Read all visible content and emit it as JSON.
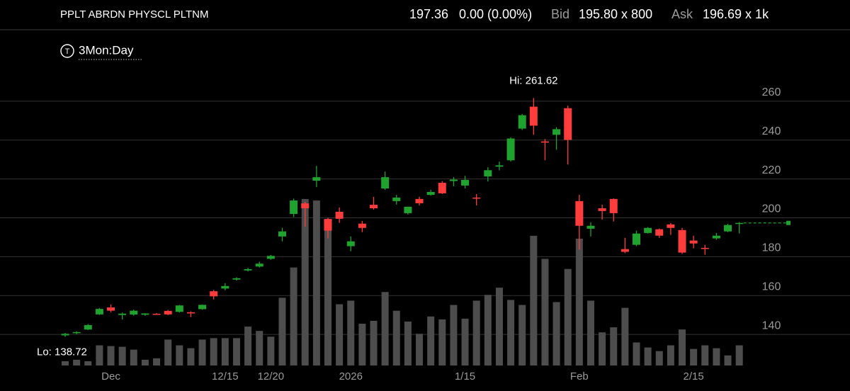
{
  "header": {
    "symbol": "PPLT ABRDN PHYSCL PLTNM",
    "last": "197.36",
    "change": "0.00 (0.00%)",
    "bid_label": "Bid",
    "bid": "195.80 x 800",
    "ask_label": "Ask",
    "ask": "196.69 x 1k",
    "icon": "T",
    "period": "3Mon:Day"
  },
  "chart_data": {
    "type": "candlestick",
    "categories": [
      null,
      null,
      null,
      null,
      "Dec",
      null,
      null,
      null,
      null,
      null,
      null,
      null,
      null,
      null,
      "12/15",
      null,
      null,
      null,
      "12/20",
      null,
      null,
      null,
      null,
      null,
      null,
      "2026",
      null,
      null,
      null,
      null,
      null,
      null,
      null,
      null,
      null,
      "1/15",
      null,
      null,
      null,
      null,
      null,
      null,
      null,
      null,
      null,
      "Feb",
      null,
      null,
      null,
      null,
      null,
      null,
      null,
      null,
      null,
      "2/15",
      null,
      null,
      null,
      null
    ],
    "open": [
      139.5,
      140.6,
      142.5,
      150.3,
      153.9,
      150.0,
      150.2,
      150.1,
      150.6,
      152.1,
      151.6,
      151.4,
      153.0,
      162.2,
      163.6,
      168.2,
      172.9,
      174.9,
      178.9,
      190.4,
      202.0,
      207.4,
      219.1,
      199.4,
      203.1,
      185.4,
      197.0,
      206.7,
      215.1,
      208.6,
      202.4,
      209.7,
      211.8,
      218.0,
      218.9,
      216.6,
      210.4,
      221.3,
      226.3,
      229.6,
      245.9,
      257.2,
      239.3,
      242.7,
      256.4,
      208.6,
      194.4,
      204.9,
      209.7,
      183.9,
      186.1,
      192.2,
      194.1,
      196.6,
      193.7,
      188.3,
      184.5,
      189.4,
      193.0,
      196.9
    ],
    "high": [
      140.8,
      141.6,
      145.3,
      153.6,
      155.4,
      151.2,
      152.7,
      150.9,
      151.0,
      152.6,
      155.2,
      151.9,
      155.4,
      162.9,
      166.4,
      169.4,
      174.2,
      177.4,
      180.9,
      194.8,
      209.9,
      208.2,
      226.7,
      200.0,
      205.3,
      190.4,
      198.4,
      210.8,
      223.8,
      211.8,
      205.7,
      210.8,
      214.4,
      218.9,
      220.9,
      221.6,
      212.2,
      226.0,
      228.9,
      241.4,
      253.4,
      261.62,
      240.5,
      246.6,
      257.7,
      211.8,
      197.7,
      206.8,
      210.0,
      189.7,
      193.4,
      195.2,
      194.5,
      197.3,
      194.8,
      190.8,
      186.1,
      192.2,
      196.9,
      197.8
    ],
    "low": [
      138.72,
      140.2,
      142.2,
      150.0,
      151.4,
      147.7,
      149.7,
      149.6,
      150.1,
      149.9,
      151.3,
      148.9,
      152.7,
      158.0,
      162.7,
      167.7,
      172.4,
      174.4,
      178.4,
      187.9,
      200.4,
      195.4,
      215.8,
      189.4,
      197.4,
      182.8,
      192.6,
      204.2,
      214.4,
      206.8,
      201.7,
      206.4,
      211.4,
      212.2,
      216.2,
      215.1,
      206.4,
      218.7,
      224.4,
      229.0,
      245.2,
      242.7,
      229.6,
      235.0,
      227.4,
      183.6,
      190.4,
      199.1,
      198.1,
      181.8,
      185.4,
      191.9,
      189.7,
      191.2,
      181.4,
      184.3,
      181.0,
      188.7,
      192.6,
      191.9
    ],
    "close": [
      140.3,
      141.2,
      144.8,
      153.1,
      152.2,
      150.7,
      152.2,
      150.8,
      150.3,
      150.3,
      154.9,
      150.8,
      155.2,
      159.6,
      164.9,
      168.9,
      173.6,
      176.4,
      180.4,
      193.0,
      208.9,
      204.9,
      220.9,
      193.4,
      199.5,
      187.9,
      194.8,
      204.9,
      220.9,
      210.4,
      205.7,
      207.5,
      213.3,
      212.6,
      219.7,
      219.5,
      209.9,
      224.5,
      227.0,
      240.8,
      252.8,
      247.4,
      238.7,
      245.6,
      240.1,
      195.9,
      195.9,
      203.5,
      202.4,
      182.5,
      191.9,
      194.8,
      190.8,
      194.8,
      182.1,
      186.8,
      184.0,
      190.8,
      196.3,
      197.36
    ],
    "volume": [
      6,
      8,
      6,
      28,
      27,
      26,
      22,
      8,
      10,
      36,
      28,
      24,
      36,
      38,
      38,
      38,
      54,
      48,
      40,
      94,
      136,
      231,
      229,
      198,
      85,
      90,
      58,
      62,
      102,
      76,
      61,
      44,
      68,
      64,
      84,
      65,
      90,
      98,
      108,
      91,
      84,
      180,
      148,
      88,
      134,
      176,
      90,
      46,
      53,
      80,
      32,
      25,
      20,
      28,
      50,
      23,
      28,
      24,
      14,
      28
    ],
    "ylim": [
      124,
      280
    ],
    "yticks": [
      140,
      160,
      180,
      200,
      220,
      240,
      260
    ],
    "grid": true,
    "annotations": [
      {
        "text": "Hi: 261.62",
        "value": 261.62
      },
      {
        "text": "Lo: 138.72",
        "value": 138.72
      }
    ],
    "colors": {
      "up": "#1fa22e",
      "down": "#ff3c3c",
      "volume": "#4d4d4d",
      "last_line": "#1fa22e"
    }
  }
}
